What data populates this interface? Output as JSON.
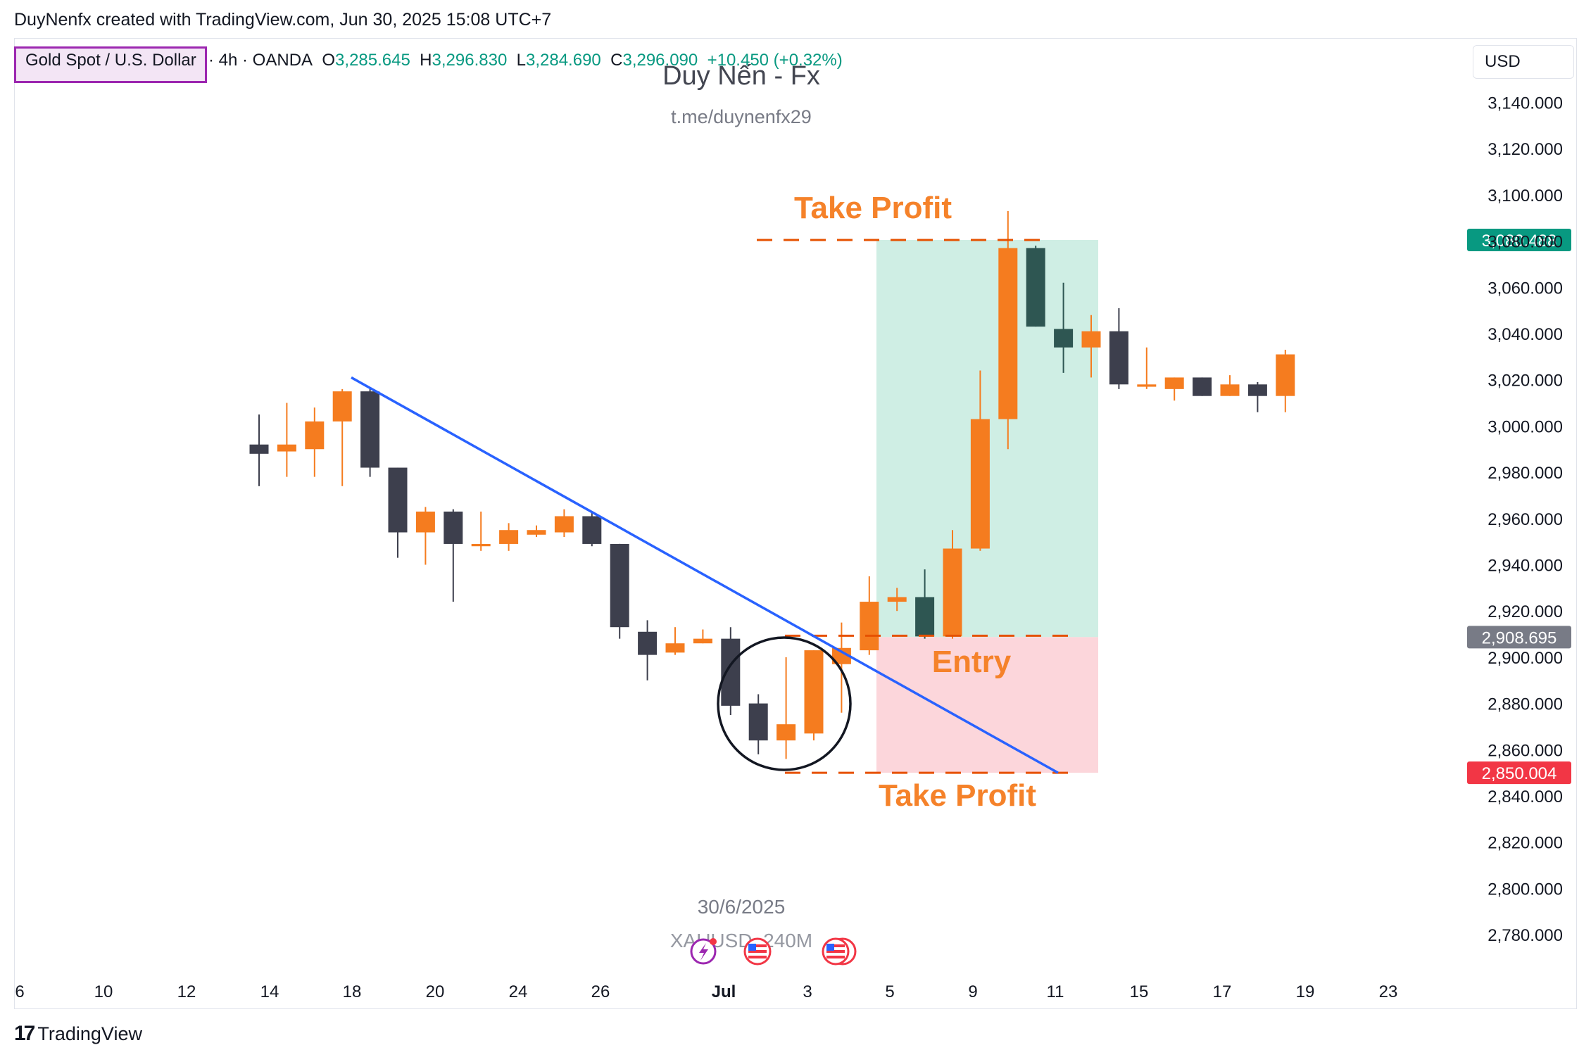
{
  "attribution": "DuyNenfx created with TradingView.com, Jun 30, 2025 15:08 UTC+7",
  "symbol": {
    "name": "Gold Spot / U.S. Dollar",
    "meta": "· 4h · OANDA",
    "open_label": "O",
    "open": "3,285.645",
    "high_label": "H",
    "high": "3,296.830",
    "low_label": "L",
    "low": "3,284.690",
    "close_label": "C",
    "close": "3,296.090",
    "change": "+10.450 (+0.32%)"
  },
  "currency": "USD",
  "watermark": {
    "title": "Duy Nến - Fx",
    "subtitle": "t.me/duynenfx29",
    "date": "30/6/2025",
    "ticker": "XAUUSD, 240M"
  },
  "footer": {
    "brand_mark": "17",
    "brand": "TradingView"
  },
  "colors": {
    "bull": "#f57c1f",
    "bear": "#3d3f4d",
    "teal_bear": "#2e5652",
    "take_profit": "#f5822a",
    "tp_line": "#e65100",
    "trendline": "#2962ff",
    "profit_zone": "#cfeee4",
    "loss_zone": "#fcd6db",
    "tp_price_bg": "#089981",
    "entry_price_bg": "#787b86",
    "sl_price_bg": "#f23645"
  },
  "chart_data": {
    "type": "candlestick",
    "title": "Gold Spot / U.S. Dollar · 4h · OANDA",
    "ylim": [
      2760,
      3160
    ],
    "y_ticks": [
      "3,140.000",
      "3,120.000",
      "3,100.000",
      "3,080.000",
      "3,060.000",
      "3,040.000",
      "3,020.000",
      "3,000.000",
      "2,980.000",
      "2,960.000",
      "2,940.000",
      "2,920.000",
      "2,900.000",
      "2,880.000",
      "2,860.000",
      "2,840.000",
      "2,820.000",
      "2,800.000",
      "2,780.000"
    ],
    "y_tick_values": [
      3140,
      3120,
      3100,
      3080,
      3060,
      3040,
      3020,
      3000,
      2980,
      2960,
      2940,
      2920,
      2900,
      2880,
      2860,
      2840,
      2820,
      2800,
      2780
    ],
    "x_ticks": [
      "6",
      "10",
      "12",
      "14",
      "18",
      "20",
      "24",
      "26",
      "Jul",
      "3",
      "5",
      "9",
      "11",
      "15",
      "17",
      "19",
      "23"
    ],
    "candles": [
      {
        "o": 2988,
        "h": 3005,
        "l": 2974,
        "c": 2992,
        "s": "bear"
      },
      {
        "o": 2989,
        "h": 3010,
        "l": 2978,
        "c": 2992,
        "s": "bull"
      },
      {
        "o": 2990,
        "h": 3008,
        "l": 2978,
        "c": 3002,
        "s": "bull"
      },
      {
        "o": 3002,
        "h": 3016,
        "l": 2974,
        "c": 3015,
        "s": "bull"
      },
      {
        "o": 3015,
        "h": 3016,
        "l": 2978,
        "c": 2982,
        "s": "bear"
      },
      {
        "o": 2982,
        "h": 2982,
        "l": 2943,
        "c": 2954,
        "s": "bear"
      },
      {
        "o": 2954,
        "h": 2965,
        "l": 2940,
        "c": 2963,
        "s": "bull"
      },
      {
        "o": 2963,
        "h": 2964,
        "l": 2924,
        "c": 2949,
        "s": "bear"
      },
      {
        "o": 2948,
        "h": 2963,
        "l": 2946,
        "c": 2949,
        "s": "bull"
      },
      {
        "o": 2949,
        "h": 2958,
        "l": 2946,
        "c": 2955,
        "s": "bull"
      },
      {
        "o": 2953,
        "h": 2957,
        "l": 2952,
        "c": 2955,
        "s": "bull"
      },
      {
        "o": 2954,
        "h": 2964,
        "l": 2952,
        "c": 2961,
        "s": "bull"
      },
      {
        "o": 2961,
        "h": 2963,
        "l": 2948,
        "c": 2949,
        "s": "bear"
      },
      {
        "o": 2949,
        "h": 2949,
        "l": 2908,
        "c": 2913,
        "s": "bear"
      },
      {
        "o": 2911,
        "h": 2916,
        "l": 2890,
        "c": 2901,
        "s": "bear"
      },
      {
        "o": 2902,
        "h": 2913,
        "l": 2901,
        "c": 2906,
        "s": "bull"
      },
      {
        "o": 2906,
        "h": 2912,
        "l": 2906,
        "c": 2908,
        "s": "bull"
      },
      {
        "o": 2908,
        "h": 2913,
        "l": 2875,
        "c": 2879,
        "s": "bear"
      },
      {
        "o": 2880,
        "h": 2884,
        "l": 2858,
        "c": 2864,
        "s": "bear"
      },
      {
        "o": 2864,
        "h": 2900,
        "l": 2856,
        "c": 2871,
        "s": "bull"
      },
      {
        "o": 2867,
        "h": 2903,
        "l": 2864,
        "c": 2903,
        "s": "bull"
      },
      {
        "o": 2897,
        "h": 2915,
        "l": 2876,
        "c": 2904,
        "s": "bull"
      },
      {
        "o": 2903,
        "h": 2935,
        "l": 2901,
        "c": 2924,
        "s": "bull"
      },
      {
        "o": 2924,
        "h": 2930,
        "l": 2920,
        "c": 2926,
        "s": "bull"
      },
      {
        "o": 2926,
        "h": 2938,
        "l": 2908,
        "c": 2909,
        "s": "teal"
      },
      {
        "o": 2909,
        "h": 2955,
        "l": 2908,
        "c": 2947,
        "s": "bull"
      },
      {
        "o": 2947,
        "h": 3024,
        "l": 2946,
        "c": 3003,
        "s": "bull"
      },
      {
        "o": 3003,
        "h": 3093,
        "l": 2990,
        "c": 3077,
        "s": "bull"
      },
      {
        "o": 3077,
        "h": 3078,
        "l": 3043,
        "c": 3043,
        "s": "teal"
      },
      {
        "o": 3042,
        "h": 3062,
        "l": 3023,
        "c": 3034,
        "s": "teal"
      },
      {
        "o": 3034,
        "h": 3048,
        "l": 3021,
        "c": 3041,
        "s": "bull"
      },
      {
        "o": 3041,
        "h": 3051,
        "l": 3016,
        "c": 3018,
        "s": "bear"
      },
      {
        "o": 3017,
        "h": 3034,
        "l": 3016,
        "c": 3018,
        "s": "bull"
      },
      {
        "o": 3016,
        "h": 3021,
        "l": 3011,
        "c": 3021,
        "s": "bull"
      },
      {
        "o": 3021,
        "h": 3021,
        "l": 3013,
        "c": 3013,
        "s": "bear"
      },
      {
        "o": 3013,
        "h": 3022,
        "l": 3013,
        "c": 3018,
        "s": "bull"
      },
      {
        "o": 3018,
        "h": 3019,
        "l": 3006,
        "c": 3013,
        "s": "bear"
      },
      {
        "o": 3013,
        "h": 3033,
        "l": 3006,
        "c": 3031,
        "s": "bull"
      }
    ],
    "annotations": {
      "take_profit_upper": {
        "label": "Take Profit",
        "price": 3080.488,
        "price_label": "3,080.488"
      },
      "entry": {
        "label": "Entry",
        "price": 2908.695,
        "price_label": "2,908.695"
      },
      "take_profit_lower": {
        "label": "Take Profit",
        "price": 2850.004,
        "price_label": "2,850.004"
      },
      "trendline": {
        "from_price": 3021,
        "to_price": 2850
      }
    }
  }
}
